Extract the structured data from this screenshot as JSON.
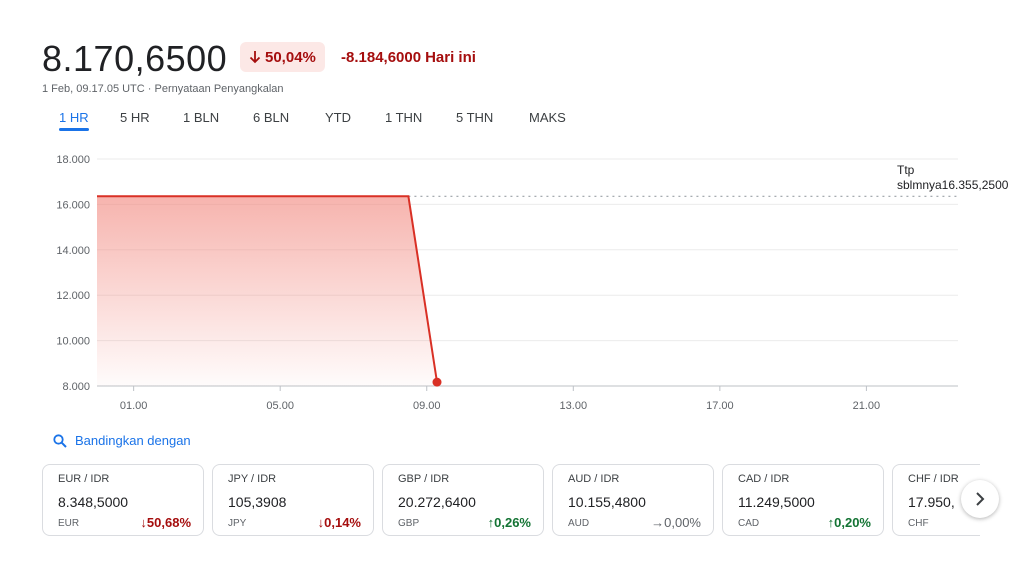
{
  "header": {
    "price": "8.170,6500",
    "change_pct": "50,04%",
    "change_abs": "-8.184,6000",
    "change_period": "Hari ini",
    "meta": "1 Feb, 09.17.05 UTC · Pernyataan Penyangkalan",
    "colors": {
      "down": "#a50e0e",
      "down_bg": "#fce8e6",
      "accent": "#1a73e8"
    }
  },
  "tabs": [
    {
      "label": "1 HR",
      "active": true
    },
    {
      "label": "5 HR"
    },
    {
      "label": "1 BLN"
    },
    {
      "label": "6 BLN"
    },
    {
      "label": "YTD"
    },
    {
      "label": "1 THN"
    },
    {
      "label": "5 THN"
    },
    {
      "label": "MAKS"
    }
  ],
  "chart_data": {
    "type": "area",
    "x_ticks": [
      "01.00",
      "05.00",
      "09.00",
      "13.00",
      "17.00",
      "21.00"
    ],
    "y_ticks": [
      "18.000",
      "16.000",
      "14.000",
      "12.000",
      "10.000",
      "8.000"
    ],
    "ylim": [
      8000,
      18000
    ],
    "xlim_hours": [
      0,
      23.5
    ],
    "series": [
      {
        "points": [
          [
            0,
            16355.25
          ],
          [
            8.5,
            16355.25
          ],
          [
            9.28,
            8170.65
          ]
        ]
      }
    ],
    "previous_close": {
      "label_line1": "Ttp",
      "label_line2": "sblmnya16.355,2500",
      "value": 16355.25
    },
    "colors": {
      "line": "#d93025",
      "fill": "#f28b82",
      "grid": "#ebebeb",
      "axis": "#bdc1c6"
    }
  },
  "compare": {
    "label": "Bandingkan dengan",
    "icon": "search-icon"
  },
  "cards": [
    {
      "pair": "EUR / IDR",
      "value": "8.348,5000",
      "code": "EUR",
      "change": "50,68%",
      "direction": "down"
    },
    {
      "pair": "JPY / IDR",
      "value": "105,3908",
      "code": "JPY",
      "change": "0,14%",
      "direction": "down"
    },
    {
      "pair": "GBP / IDR",
      "value": "20.272,6400",
      "code": "GBP",
      "change": "0,26%",
      "direction": "up"
    },
    {
      "pair": "AUD / IDR",
      "value": "10.155,4800",
      "code": "AUD",
      "change": "0,00%",
      "direction": "flat"
    },
    {
      "pair": "CAD / IDR",
      "value": "11.249,5000",
      "code": "CAD",
      "change": "0,20%",
      "direction": "up"
    },
    {
      "pair": "CHF / IDR",
      "value": "17.950,",
      "code": "CHF",
      "change": "",
      "direction": "none"
    }
  ],
  "next_button": {
    "icon": "chevron-right-icon"
  }
}
